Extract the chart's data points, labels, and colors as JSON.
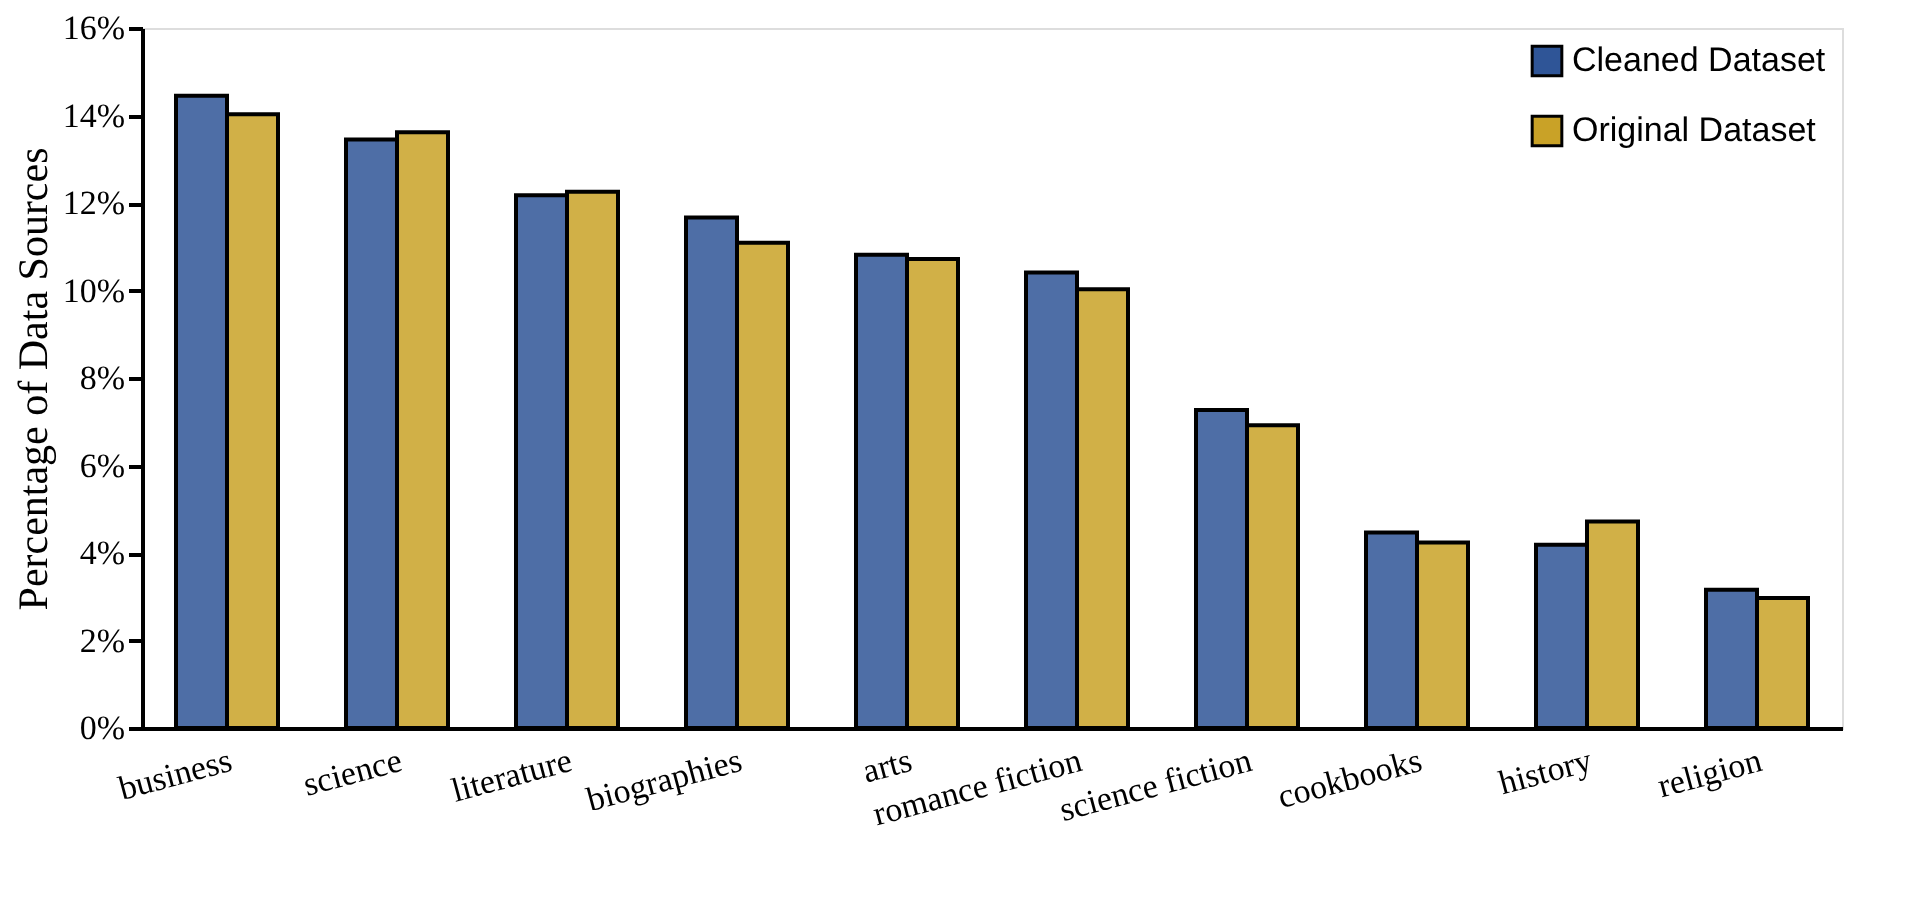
{
  "chart_data": {
    "type": "bar",
    "ylabel": "Percentage of Data Sources",
    "categories": [
      "business",
      "science",
      "literature",
      "biographies",
      "arts",
      "romance fiction",
      "science fiction",
      "cookbooks",
      "history",
      "religion"
    ],
    "series": [
      {
        "name": "Cleaned Dataset",
        "color": "#2f5597",
        "values": [
          14.45,
          13.45,
          12.18,
          11.67,
          10.82,
          10.41,
          7.27,
          4.47,
          4.19,
          3.16
        ]
      },
      {
        "name": "Original Dataset",
        "color": "#c9a227",
        "values": [
          14.03,
          13.62,
          12.26,
          11.09,
          10.72,
          10.03,
          6.92,
          4.24,
          4.72,
          2.97
        ]
      }
    ],
    "ylim": [
      0,
      16
    ],
    "yticks": [
      {
        "value": 0,
        "label": "0%"
      },
      {
        "value": 2,
        "label": "2%"
      },
      {
        "value": 4,
        "label": "4%"
      },
      {
        "value": 6,
        "label": "6%"
      },
      {
        "value": 8,
        "label": "8%"
      },
      {
        "value": 10,
        "label": "10%"
      },
      {
        "value": 12,
        "label": "12%"
      },
      {
        "value": 14,
        "label": "14%"
      },
      {
        "value": 16,
        "label": "16%"
      }
    ],
    "grid": false,
    "legend": "top right"
  }
}
